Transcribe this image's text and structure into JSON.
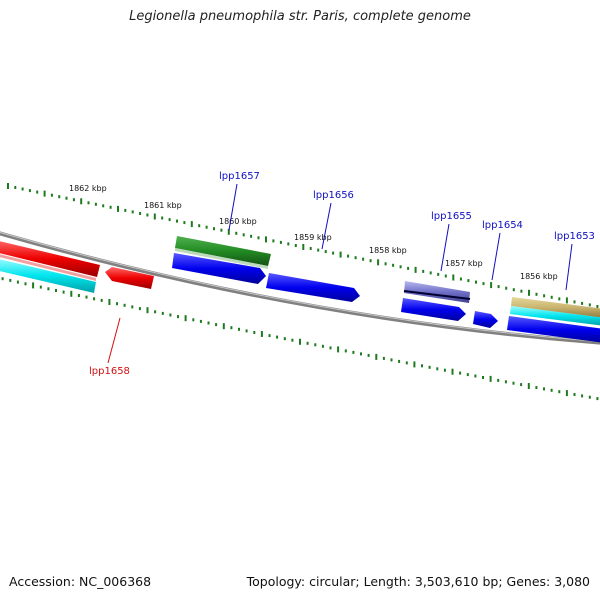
{
  "title": "Legionella pneumophila str. Paris, complete genome",
  "footer": {
    "accession": "Accession: NC_006368",
    "summary": "Topology: circular; Length: 3,503,610 bp; Genes: 3,080"
  },
  "colors": {
    "backbone": "#808080",
    "tick": "#1f7a1f",
    "gene_label_blue": "#1010c0",
    "gene_label_red": "#d01010",
    "forward_cds": "#0000ee",
    "reverse_cds": "#ee0000",
    "rna": "#228b22",
    "cyan_track": "#00e5ee",
    "tan_track": "#c8b46e",
    "pseudo": "#8080d0"
  },
  "scale_labels": [
    "1862 kbp",
    "1861 kbp",
    "1860 kbp",
    "1859 kbp",
    "1858 kbp",
    "1857 kbp",
    "1856 kbp"
  ],
  "genes": [
    {
      "name": "lpp1657",
      "color_key": "gene_label_blue"
    },
    {
      "name": "lpp1656",
      "color_key": "gene_label_blue"
    },
    {
      "name": "lpp1655",
      "color_key": "gene_label_blue"
    },
    {
      "name": "lpp1654",
      "color_key": "gene_label_blue"
    },
    {
      "name": "lpp1653",
      "color_key": "gene_label_blue"
    },
    {
      "name": "lpp1658",
      "color_key": "gene_label_red"
    }
  ]
}
